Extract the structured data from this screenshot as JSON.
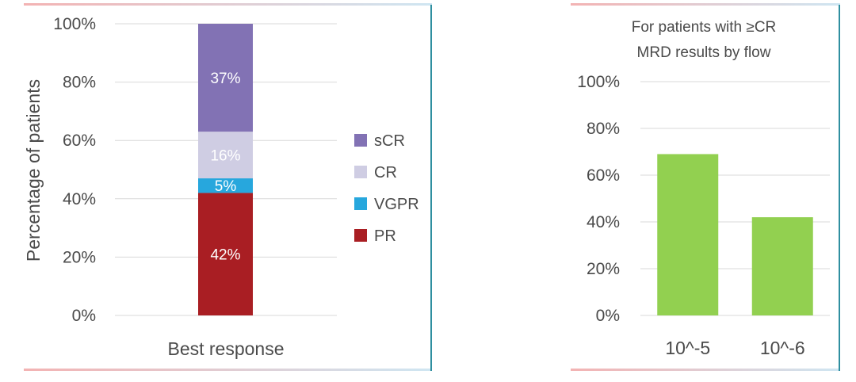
{
  "chart_data": [
    {
      "type": "bar",
      "stacked": true,
      "categories": [
        "Best response"
      ],
      "xlabel": "Best response",
      "ylabel": "Percentage of patients",
      "ylim": [
        0,
        100
      ],
      "yticks": [
        "0%",
        "20%",
        "40%",
        "60%",
        "80%",
        "100%"
      ],
      "grid": true,
      "legend": "right",
      "series": [
        {
          "name": "PR",
          "values": [
            42
          ],
          "label": "42%",
          "color": "#a91e23"
        },
        {
          "name": "VGPR",
          "values": [
            5
          ],
          "label": "5%",
          "color": "#27a7dd"
        },
        {
          "name": "CR",
          "values": [
            16
          ],
          "label": "16%",
          "color": "#cfcde3"
        },
        {
          "name": "sCR",
          "values": [
            37
          ],
          "label": "37%",
          "color": "#8272b4"
        }
      ]
    },
    {
      "type": "bar",
      "title": "For patients with ≥CR",
      "subtitle": "MRD results by flow",
      "categories": [
        "10^-5",
        "10^-6"
      ],
      "values": [
        69,
        42
      ],
      "ylim": [
        0,
        100
      ],
      "yticks": [
        "0%",
        "20%",
        "40%",
        "60%",
        "80%",
        "100%"
      ],
      "grid": true,
      "color": "#92d050"
    }
  ],
  "colors": {
    "frame": "#2f8fa0",
    "gradient_start": "#f3b3b3",
    "gradient_end": "#cfe6f2",
    "gridline": "#d9d9d9"
  }
}
